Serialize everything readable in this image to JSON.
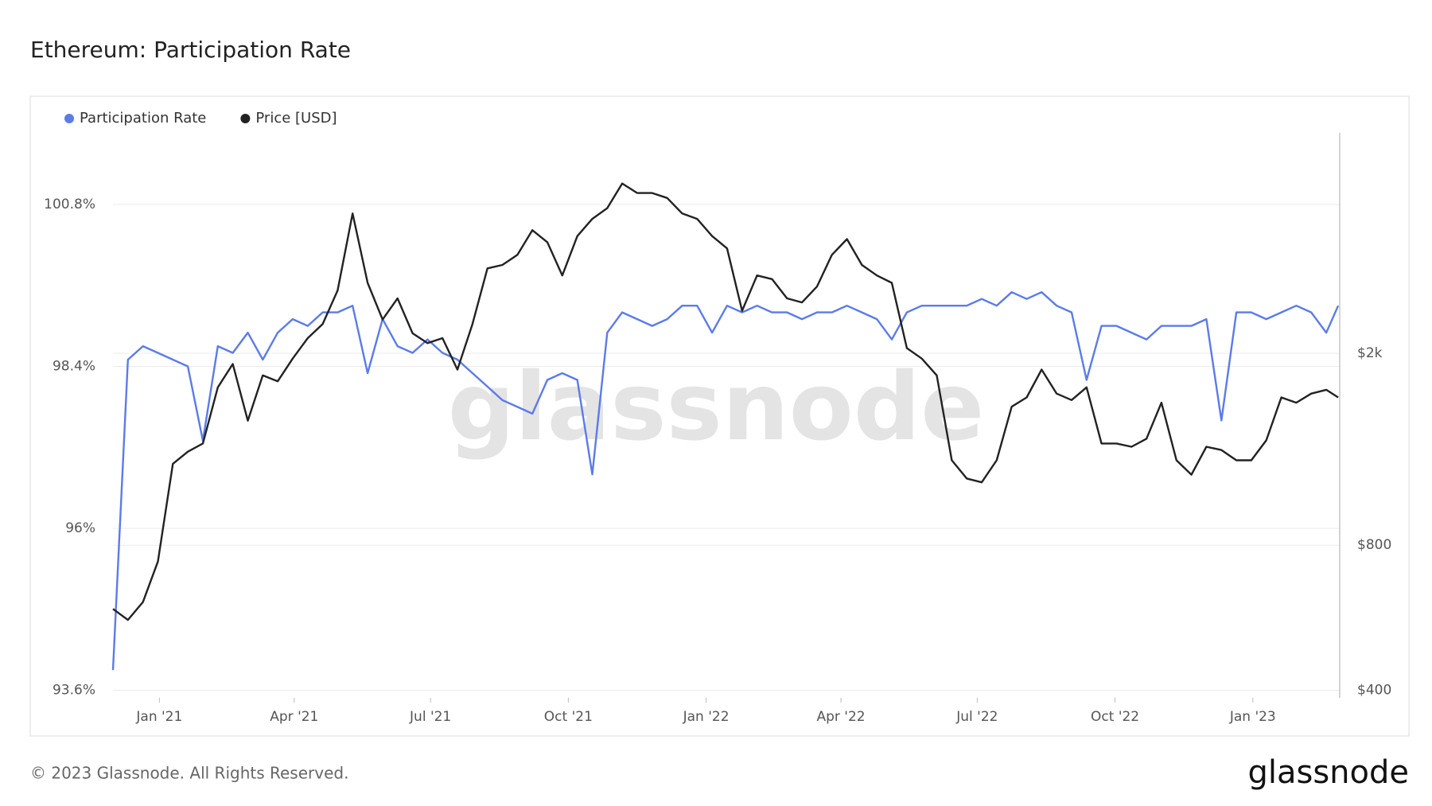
{
  "chart_data": {
    "type": "line",
    "title": "Ethereum: Participation Rate",
    "footer": "© 2023 Glassnode. All Rights Reserved.",
    "logo": "glassnode",
    "watermark": "glassnode",
    "x": [
      "2020-12-01",
      "2020-12-11",
      "2020-12-21",
      "2020-12-31",
      "2021-01-10",
      "2021-01-20",
      "2021-01-30",
      "2021-02-09",
      "2021-02-19",
      "2021-03-01",
      "2021-03-11",
      "2021-03-21",
      "2021-03-31",
      "2021-04-10",
      "2021-04-20",
      "2021-04-30",
      "2021-05-10",
      "2021-05-20",
      "2021-05-30",
      "2021-06-09",
      "2021-06-19",
      "2021-06-29",
      "2021-07-09",
      "2021-07-19",
      "2021-07-29",
      "2021-08-08",
      "2021-08-18",
      "2021-08-28",
      "2021-09-07",
      "2021-09-17",
      "2021-09-27",
      "2021-10-07",
      "2021-10-17",
      "2021-10-27",
      "2021-11-06",
      "2021-11-16",
      "2021-11-26",
      "2021-12-06",
      "2021-12-16",
      "2021-12-26",
      "2022-01-05",
      "2022-01-15",
      "2022-01-25",
      "2022-02-04",
      "2022-02-14",
      "2022-02-24",
      "2022-03-06",
      "2022-03-16",
      "2022-03-26",
      "2022-04-05",
      "2022-04-15",
      "2022-04-25",
      "2022-05-05",
      "2022-05-15",
      "2022-05-25",
      "2022-06-04",
      "2022-06-14",
      "2022-06-24",
      "2022-07-04",
      "2022-07-14",
      "2022-07-24",
      "2022-08-03",
      "2022-08-13",
      "2022-08-23",
      "2022-09-02",
      "2022-09-12",
      "2022-09-22",
      "2022-10-02",
      "2022-10-12",
      "2022-10-22",
      "2022-11-01",
      "2022-11-11",
      "2022-11-21",
      "2022-12-01",
      "2022-12-11",
      "2022-12-21",
      "2022-12-31",
      "2023-01-10",
      "2023-01-20",
      "2023-01-30",
      "2023-02-09",
      "2023-02-19",
      "2023-02-27"
    ],
    "series": [
      {
        "name": "Participation Rate",
        "color": "#5b7be9",
        "axis": "y",
        "values": [
          93.9,
          98.5,
          98.7,
          98.6,
          98.5,
          98.4,
          97.3,
          98.7,
          98.6,
          98.9,
          98.5,
          98.9,
          99.1,
          99.0,
          99.2,
          99.2,
          99.3,
          98.3,
          99.1,
          98.7,
          98.6,
          98.8,
          98.6,
          98.5,
          98.3,
          98.1,
          97.9,
          97.8,
          97.7,
          98.2,
          98.3,
          98.2,
          96.8,
          98.9,
          99.2,
          99.1,
          99.0,
          99.1,
          99.3,
          99.3,
          98.9,
          99.3,
          99.2,
          99.3,
          99.2,
          99.2,
          99.1,
          99.2,
          99.2,
          99.3,
          99.2,
          99.1,
          98.8,
          99.2,
          99.3,
          99.3,
          99.3,
          99.3,
          99.4,
          99.3,
          99.5,
          99.4,
          99.5,
          99.3,
          99.2,
          98.2,
          99.0,
          99.0,
          98.9,
          98.8,
          99.0,
          99.0,
          99.0,
          99.1,
          97.6,
          99.2,
          99.2,
          99.1,
          99.2,
          99.3,
          99.2,
          98.9,
          99.3
        ]
      },
      {
        "name": "Price [USD]",
        "color": "#222222",
        "axis": "y2",
        "values": [
          590,
          560,
          610,
          740,
          1180,
          1250,
          1300,
          1700,
          1900,
          1450,
          1800,
          1750,
          1950,
          2150,
          2300,
          2700,
          3900,
          2800,
          2350,
          2600,
          2200,
          2100,
          2150,
          1850,
          2300,
          3000,
          3050,
          3200,
          3600,
          3400,
          2900,
          3500,
          3800,
          4000,
          4500,
          4300,
          4300,
          4200,
          3900,
          3800,
          3500,
          3300,
          2450,
          2900,
          2850,
          2600,
          2550,
          2750,
          3200,
          3450,
          3050,
          2900,
          2800,
          2050,
          1950,
          1800,
          1200,
          1100,
          1080,
          1200,
          1550,
          1620,
          1850,
          1650,
          1600,
          1700,
          1300,
          1300,
          1280,
          1330,
          1580,
          1200,
          1120,
          1280,
          1260,
          1200,
          1200,
          1320,
          1620,
          1580,
          1650,
          1680,
          1620
        ]
      }
    ],
    "xlim": [
      "2020-12-01",
      "2023-02-28"
    ],
    "xticks": [
      {
        "value": "2021-01-01",
        "label": "Jan '21"
      },
      {
        "value": "2021-04-01",
        "label": "Apr '21"
      },
      {
        "value": "2021-07-01",
        "label": "Jul '21"
      },
      {
        "value": "2021-10-01",
        "label": "Oct '21"
      },
      {
        "value": "2022-01-01",
        "label": "Jan '22"
      },
      {
        "value": "2022-04-01",
        "label": "Apr '22"
      },
      {
        "value": "2022-07-01",
        "label": "Jul '22"
      },
      {
        "value": "2022-10-01",
        "label": "Oct '22"
      },
      {
        "value": "2023-01-01",
        "label": "Jan '23"
      }
    ],
    "ylim": [
      93.49,
      101.86
    ],
    "yticks": [
      {
        "value": 93.6,
        "label": "93.6%"
      },
      {
        "value": 96,
        "label": "96%"
      },
      {
        "value": 98.4,
        "label": "98.4%"
      },
      {
        "value": 100.8,
        "label": "100.8%"
      }
    ],
    "y2lim": [
      386,
      5730
    ],
    "y2_log": true,
    "y2ticks": [
      {
        "value": 400,
        "label": "$400"
      },
      {
        "value": 800,
        "label": "$800"
      },
      {
        "value": 2000,
        "label": "$2k"
      }
    ],
    "grid": true
  }
}
